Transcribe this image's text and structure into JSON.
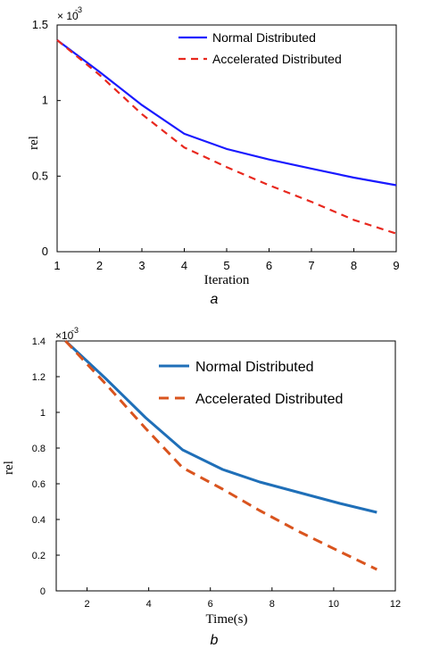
{
  "chart_data": [
    {
      "type": "line",
      "panel_label": "a",
      "xlabel": "Iteration",
      "ylabel": "rel",
      "y_multiplier": {
        "base": "× 10",
        "exponent": "-3"
      },
      "xlim": [
        1,
        9
      ],
      "ylim": [
        0,
        1.5
      ],
      "x_ticks": [
        "1",
        "2",
        "3",
        "4",
        "5",
        "6",
        "7",
        "8",
        "9"
      ],
      "y_ticks": [
        "0",
        "0.5",
        "1",
        "1.5"
      ],
      "legend_position": "top-right",
      "series": [
        {
          "name": "Normal Distributed",
          "color": "#1a1aff",
          "style": "solid",
          "x": [
            1,
            2,
            3,
            4,
            5,
            6,
            7,
            8,
            9
          ],
          "y": [
            1.4,
            1.19,
            0.97,
            0.78,
            0.68,
            0.61,
            0.55,
            0.49,
            0.44
          ]
        },
        {
          "name": "Accelerated Distributed",
          "color": "#e8281e",
          "style": "dashed",
          "x": [
            1,
            2,
            3,
            4,
            5,
            6,
            7,
            8,
            9
          ],
          "y": [
            1.4,
            1.17,
            0.91,
            0.69,
            0.56,
            0.44,
            0.33,
            0.21,
            0.12
          ]
        }
      ]
    },
    {
      "type": "line",
      "panel_label": "b",
      "xlabel": "Time(s)",
      "ylabel": "rel",
      "y_multiplier": {
        "base": "×10",
        "exponent": "-3"
      },
      "xlim": [
        1,
        12
      ],
      "ylim": [
        0,
        1.4
      ],
      "x_ticks": [
        "2",
        "4",
        "6",
        "8",
        "10",
        "12"
      ],
      "y_ticks": [
        "0",
        "0.2",
        "0.4",
        "0.6",
        "0.8",
        "1",
        "1.2",
        "1.4"
      ],
      "legend_position": "top-right",
      "series": [
        {
          "name": "Normal Distributed",
          "color": "#1f6fb8",
          "style": "solid",
          "x": [
            1.3,
            2.6,
            3.9,
            5.1,
            6.4,
            7.6,
            8.9,
            10.2,
            11.4
          ],
          "y": [
            1.4,
            1.19,
            0.97,
            0.79,
            0.68,
            0.61,
            0.55,
            0.49,
            0.44
          ]
        },
        {
          "name": "Accelerated Distributed",
          "color": "#d9541e",
          "style": "dashed",
          "x": [
            1.3,
            2.6,
            3.9,
            5.1,
            6.4,
            7.6,
            8.9,
            10.2,
            11.4
          ],
          "y": [
            1.4,
            1.16,
            0.91,
            0.69,
            0.57,
            0.45,
            0.33,
            0.22,
            0.12
          ]
        }
      ]
    }
  ]
}
